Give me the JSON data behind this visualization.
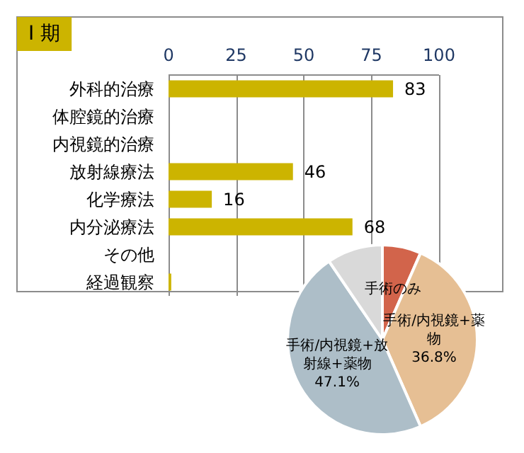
{
  "chart_data": [
    {
      "type": "bar",
      "orientation": "horizontal",
      "title": "Ⅰ 期",
      "categories": [
        "外科的治療",
        "体腔鏡的治療",
        "内視鏡的治療",
        "放射線療法",
        "化学療法",
        "内分泌療法",
        "その他",
        "経過観察"
      ],
      "values": [
        83,
        null,
        null,
        46,
        16,
        68,
        null,
        1
      ],
      "value_labels": [
        "83",
        null,
        null,
        "46",
        "16",
        "68",
        null,
        null
      ],
      "color": "#ccb400",
      "xlim": [
        0,
        100
      ],
      "xticks": [
        0,
        25,
        50,
        75,
        100
      ],
      "grid": "x",
      "legend": false
    },
    {
      "type": "pie",
      "categories": [
        "手術のみ",
        "手術/内視鏡+薬物",
        "手術/内視鏡+放射線+薬物",
        null
      ],
      "values": [
        6.6,
        36.8,
        47.1,
        9.5
      ],
      "value_labels": [
        null,
        "36.8%",
        "47.1%",
        null
      ],
      "colors": [
        "#d2644b",
        "#e6bf94",
        "#adbec8",
        "#d9d9d9"
      ],
      "legend": false
    }
  ]
}
